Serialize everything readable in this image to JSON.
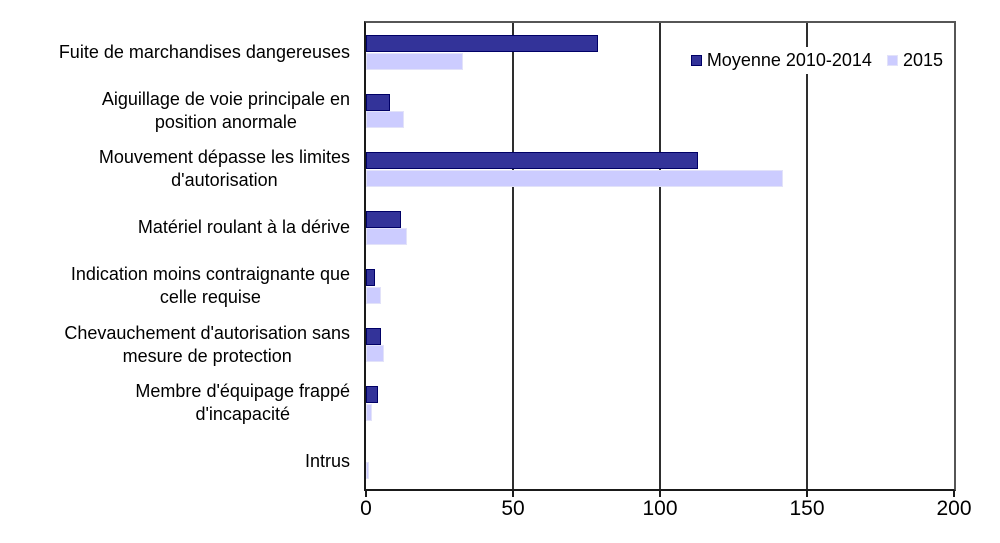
{
  "chart_data": {
    "type": "bar",
    "orientation": "horizontal",
    "title": "",
    "categories": [
      "Fuite de marchandises dangereuses",
      "Aiguillage de voie principale en position anormale",
      "Mouvement dépasse les limites d'autorisation",
      "Matériel roulant à la dérive",
      "Indication moins contraignante que celle requise",
      "Chevauchement d'autorisation sans mesure de protection",
      "Membre d'équipage frappé d'incapacité",
      "Intrus"
    ],
    "category_display_lines": [
      [
        "Fuite de marchandises dangereuses"
      ],
      [
        "Aiguillage de voie principale en",
        "position anormale"
      ],
      [
        "Mouvement dépasse les limites",
        "d'autorisation"
      ],
      [
        "Matériel roulant à la dérive"
      ],
      [
        "Indication moins contraignante que",
        "celle requise"
      ],
      [
        "Chevauchement d'autorisation sans",
        "mesure de protection"
      ],
      [
        "Membre d'équipage frappé",
        "d'incapacité"
      ],
      [
        "Intrus"
      ]
    ],
    "series": [
      {
        "name": "Moyenne 2010-2014",
        "color": "#333399",
        "border_color": "#000066",
        "values": [
          79,
          8,
          113,
          12,
          3,
          5,
          4,
          0
        ]
      },
      {
        "name": "2015",
        "color": "#ccccff",
        "border_color": "#e2e2f9",
        "values": [
          33,
          13,
          142,
          14,
          5,
          6,
          2,
          1
        ]
      }
    ],
    "xlim": [
      0,
      200
    ],
    "x_ticks": [
      0,
      50,
      100,
      150,
      200
    ],
    "grid": true,
    "legend_position": "top-right"
  },
  "colors": {
    "background": "#ffffff",
    "gridline": "#2e2e2e",
    "axis": "#1a1a1a",
    "plot_border": "#565656",
    "text": "#000000"
  }
}
